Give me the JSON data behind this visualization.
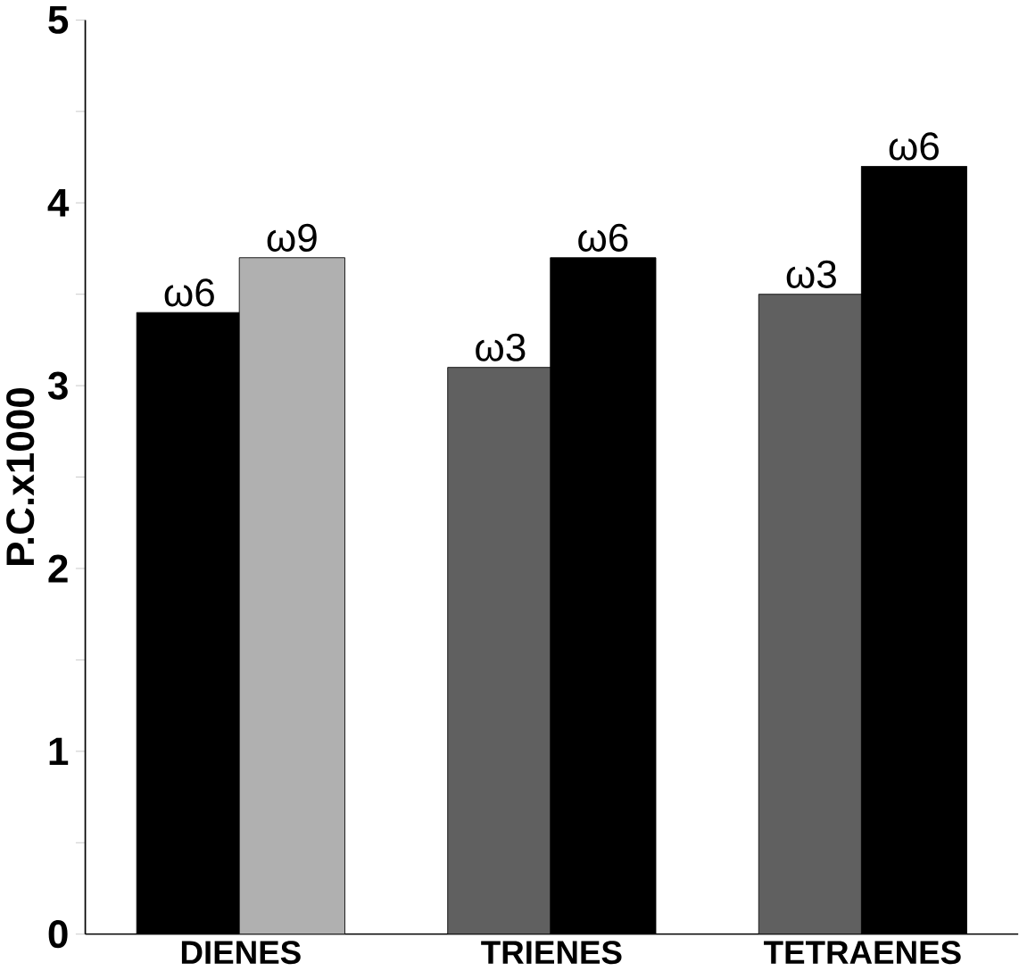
{
  "chart_data": {
    "type": "bar",
    "ylabel": "P.C.x1000",
    "categories": [
      "DIENES",
      "TRIENES",
      "TETRAENES"
    ],
    "series": [
      {
        "colors": [
          "#000000",
          "#606060",
          "#606060"
        ],
        "values": [
          3.4,
          3.1,
          3.5
        ],
        "value_labels": [
          "ω6",
          "ω3",
          "ω3"
        ]
      },
      {
        "colors": [
          "#b0b0b0",
          "#000000",
          "#000000"
        ],
        "values": [
          3.7,
          3.7,
          4.2
        ],
        "value_labels": [
          "ω9",
          "ω6",
          "ω6"
        ]
      }
    ],
    "ylim": [
      0,
      5
    ],
    "yticks": [
      0,
      {
        "value": 0.5,
        "label": null
      },
      1,
      {
        "value": 1.5,
        "label": null
      },
      2,
      {
        "value": 2.5,
        "label": null
      },
      3,
      {
        "value": 3.5,
        "label": null
      },
      4,
      {
        "value": 4.5,
        "label": null
      },
      5
    ],
    "grid": false
  }
}
